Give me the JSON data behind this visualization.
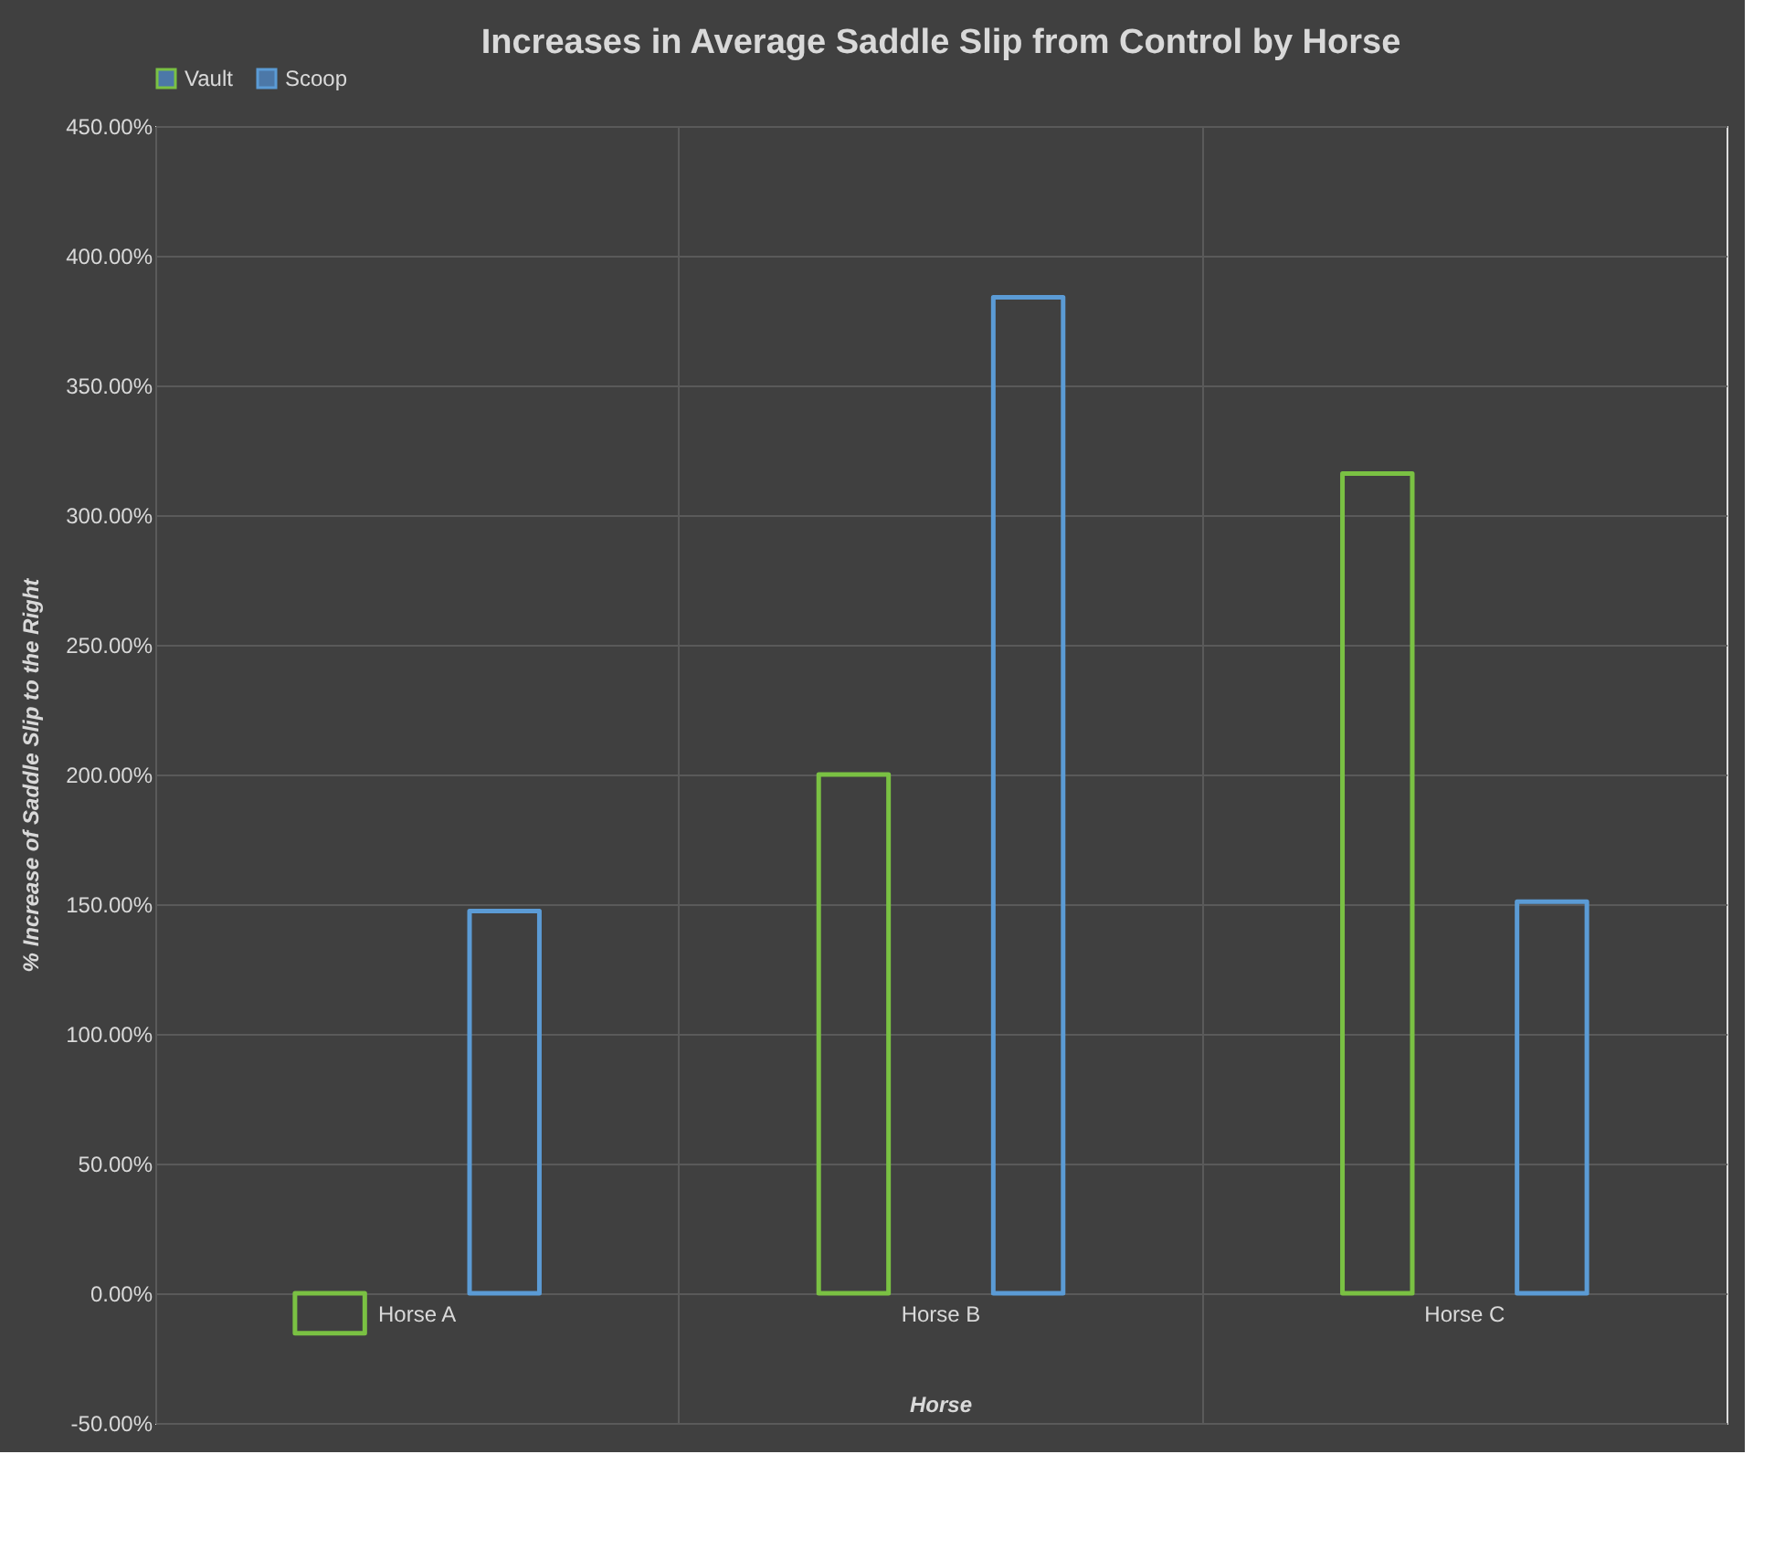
{
  "chart_data": {
    "type": "bar",
    "title": "Increases in Average Saddle Slip from Control by Horse",
    "xlabel": "Horse",
    "ylabel": "% Increase of Saddle Slip to the Right",
    "categories": [
      "Horse A",
      "Horse B",
      "Horse C"
    ],
    "series": [
      {
        "name": "Vault",
        "color": "#7ac143",
        "values": [
          -15.4,
          200,
          316
        ]
      },
      {
        "name": "Scoop",
        "color": "#5b9bd5",
        "values": [
          147.4,
          384,
          151
        ]
      }
    ],
    "ylim": [
      -50,
      450
    ],
    "yticks": [
      {
        "value": -50,
        "label": "-50.00%"
      },
      {
        "value": 0,
        "label": "0.00%"
      },
      {
        "value": 50,
        "label": "50.00%"
      },
      {
        "value": 100,
        "label": "100.00%"
      },
      {
        "value": 150,
        "label": "150.00%"
      },
      {
        "value": 200,
        "label": "200.00%"
      },
      {
        "value": 250,
        "label": "250.00%"
      },
      {
        "value": 300,
        "label": "300.00%"
      },
      {
        "value": 350,
        "label": "350.00%"
      },
      {
        "value": 400,
        "label": "400.00%"
      },
      {
        "value": 450,
        "label": "450.00%"
      }
    ],
    "grid": true,
    "legend": "top"
  }
}
